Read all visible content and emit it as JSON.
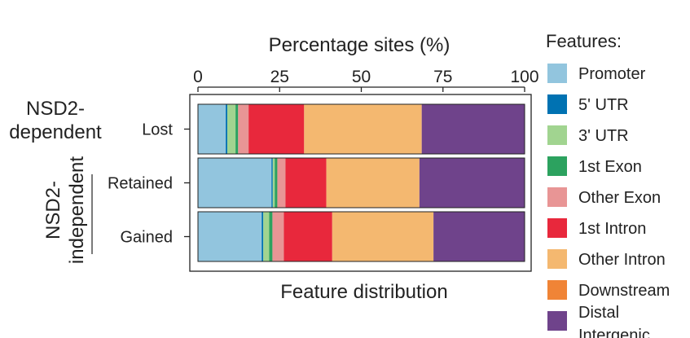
{
  "chart_data": {
    "type": "bar",
    "orientation": "horizontal",
    "stacked": true,
    "title": "Percentage sites (%)",
    "xlabel": "Feature distribution",
    "xlim": [
      0,
      100
    ],
    "xticks": [
      "0",
      "25",
      "50",
      "75",
      "100"
    ],
    "legend_title": "Features:",
    "legend_position": "right",
    "groups": [
      {
        "label": "NSD2-dependent",
        "categories": [
          "Lost"
        ]
      },
      {
        "label": "NSD2-independent",
        "categories": [
          "Retained",
          "Gained"
        ]
      }
    ],
    "categories": [
      "Lost",
      "Retained",
      "Gained"
    ],
    "series": [
      {
        "name": "Promoter",
        "color": "#92c5de",
        "values": [
          8.5,
          22.5,
          19.5
        ]
      },
      {
        "name": "5' UTR",
        "color": "#0072b2",
        "values": [
          0.5,
          0.4,
          0.5
        ]
      },
      {
        "name": "3' UTR",
        "color": "#a1d490",
        "values": [
          2.5,
          0.6,
          1.8
        ]
      },
      {
        "name": "1st Exon",
        "color": "#2ca25f",
        "values": [
          0.8,
          0.8,
          1.0
        ]
      },
      {
        "name": "Other Exon",
        "color": "#e89595",
        "values": [
          3.2,
          2.5,
          3.5
        ]
      },
      {
        "name": "1st Intron",
        "color": "#e8283c",
        "values": [
          17.0,
          12.5,
          14.8
        ]
      },
      {
        "name": "Other Intron",
        "color": "#f4b870",
        "values": [
          36.0,
          28.5,
          31.0
        ]
      },
      {
        "name": "Downstream",
        "color": "#f08436",
        "values": [
          0,
          0,
          0
        ]
      },
      {
        "name": "Distal Intergenic",
        "color": "#6f438b",
        "values": [
          31.5,
          32.2,
          27.9
        ]
      }
    ]
  }
}
